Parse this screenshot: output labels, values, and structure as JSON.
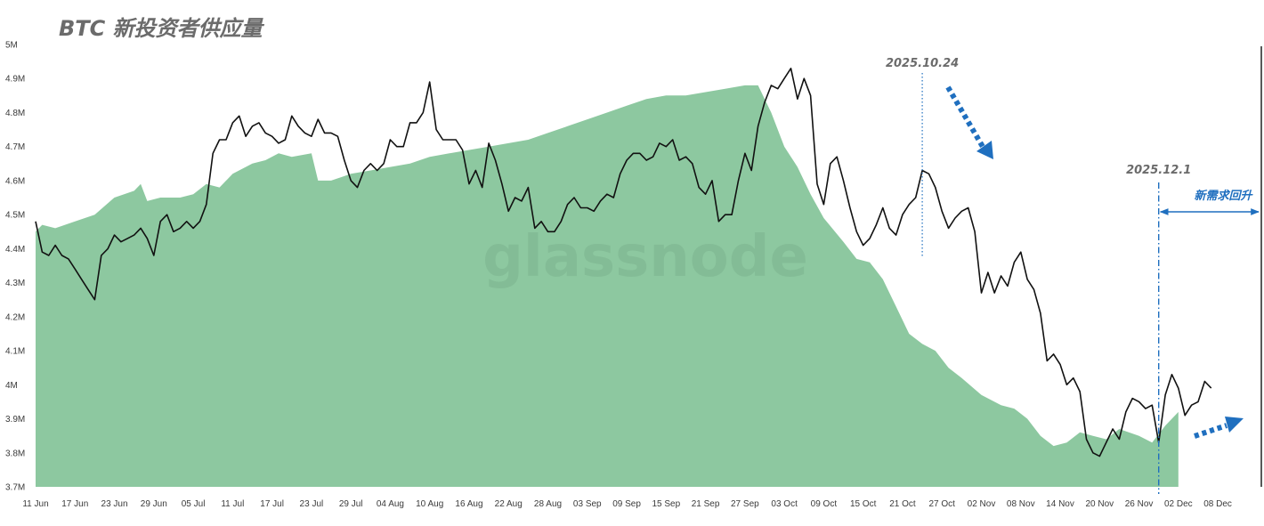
{
  "chart_data": {
    "type": "area",
    "title": "BTC 新投资者供应量",
    "watermark": "glassnode",
    "x_tick_labels": [
      "11 Jun",
      "17 Jun",
      "23 Jun",
      "29 Jun",
      "05 Jul",
      "11 Jul",
      "17 Jul",
      "23 Jul",
      "29 Jul",
      "04 Aug",
      "10 Aug",
      "16 Aug",
      "22 Aug",
      "28 Aug",
      "03 Sep",
      "09 Sep",
      "15 Sep",
      "21 Sep",
      "27 Sep",
      "03 Oct",
      "09 Oct",
      "15 Oct",
      "21 Oct",
      "27 Oct",
      "02 Nov",
      "08 Nov",
      "14 Nov",
      "20 Nov",
      "26 Nov",
      "02 Dec",
      "08 Dec"
    ],
    "y_tick_labels": [
      "3.7M",
      "3.8M",
      "3.9M",
      "4M",
      "4.1M",
      "4.2M",
      "4.3M",
      "4.4M",
      "4.5M",
      "4.6M",
      "4.7M",
      "4.8M",
      "4.9M",
      "5M"
    ],
    "y_tick_values": [
      3.7,
      3.8,
      3.9,
      4.0,
      4.1,
      4.2,
      4.3,
      4.4,
      4.5,
      4.6,
      4.7,
      4.8,
      4.9,
      5.0
    ],
    "ylim": [
      3.7,
      5.0
    ],
    "x_start": "2025-06-11",
    "x_days": 185,
    "grid": false,
    "series": [
      {
        "name": "",
        "kind": "area",
        "color": "#8dc8a0",
        "points": [
          [
            0,
            4.45
          ],
          [
            1,
            4.47
          ],
          [
            3,
            4.46
          ],
          [
            6,
            4.48
          ],
          [
            9,
            4.5
          ],
          [
            12,
            4.55
          ],
          [
            15,
            4.57
          ],
          [
            16,
            4.59
          ],
          [
            17,
            4.54
          ],
          [
            19,
            4.55
          ],
          [
            22,
            4.55
          ],
          [
            24,
            4.56
          ],
          [
            26,
            4.59
          ],
          [
            28,
            4.58
          ],
          [
            30,
            4.62
          ],
          [
            33,
            4.65
          ],
          [
            35,
            4.66
          ],
          [
            37,
            4.68
          ],
          [
            39,
            4.67
          ],
          [
            42,
            4.68
          ],
          [
            43,
            4.6
          ],
          [
            45,
            4.6
          ],
          [
            48,
            4.62
          ],
          [
            51,
            4.63
          ],
          [
            54,
            4.64
          ],
          [
            57,
            4.65
          ],
          [
            60,
            4.67
          ],
          [
            63,
            4.68
          ],
          [
            66,
            4.69
          ],
          [
            69,
            4.7
          ],
          [
            72,
            4.71
          ],
          [
            75,
            4.72
          ],
          [
            78,
            4.74
          ],
          [
            81,
            4.76
          ],
          [
            84,
            4.78
          ],
          [
            87,
            4.8
          ],
          [
            90,
            4.82
          ],
          [
            93,
            4.84
          ],
          [
            96,
            4.85
          ],
          [
            99,
            4.85
          ],
          [
            102,
            4.86
          ],
          [
            105,
            4.87
          ],
          [
            108,
            4.88
          ],
          [
            110,
            4.88
          ],
          [
            112,
            4.8
          ],
          [
            114,
            4.7
          ],
          [
            116,
            4.64
          ],
          [
            118,
            4.56
          ],
          [
            120,
            4.49
          ],
          [
            123,
            4.42
          ],
          [
            125,
            4.37
          ],
          [
            127,
            4.36
          ],
          [
            129,
            4.31
          ],
          [
            131,
            4.23
          ],
          [
            133,
            4.15
          ],
          [
            135,
            4.12
          ],
          [
            137,
            4.1
          ],
          [
            139,
            4.05
          ],
          [
            141,
            4.02
          ],
          [
            144,
            3.97
          ],
          [
            147,
            3.94
          ],
          [
            149,
            3.93
          ],
          [
            151,
            3.9
          ],
          [
            153,
            3.85
          ],
          [
            155,
            3.82
          ],
          [
            157,
            3.83
          ],
          [
            159,
            3.86
          ],
          [
            161,
            3.85
          ],
          [
            163,
            3.84
          ],
          [
            165,
            3.87
          ],
          [
            168,
            3.85
          ],
          [
            170,
            3.83
          ],
          [
            172,
            3.88
          ],
          [
            174,
            3.92
          ]
        ]
      },
      {
        "name": "",
        "kind": "line",
        "color": "#111111",
        "points": [
          [
            0,
            4.48
          ],
          [
            1,
            4.39
          ],
          [
            2,
            4.38
          ],
          [
            3,
            4.41
          ],
          [
            4,
            4.38
          ],
          [
            5,
            4.37
          ],
          [
            6,
            4.34
          ],
          [
            7,
            4.31
          ],
          [
            8,
            4.28
          ],
          [
            9,
            4.25
          ],
          [
            10,
            4.38
          ],
          [
            11,
            4.4
          ],
          [
            12,
            4.44
          ],
          [
            13,
            4.42
          ],
          [
            14,
            4.43
          ],
          [
            15,
            4.44
          ],
          [
            16,
            4.46
          ],
          [
            17,
            4.43
          ],
          [
            18,
            4.38
          ],
          [
            19,
            4.48
          ],
          [
            20,
            4.5
          ],
          [
            21,
            4.45
          ],
          [
            22,
            4.46
          ],
          [
            23,
            4.48
          ],
          [
            24,
            4.46
          ],
          [
            25,
            4.48
          ],
          [
            26,
            4.53
          ],
          [
            27,
            4.68
          ],
          [
            28,
            4.72
          ],
          [
            29,
            4.72
          ],
          [
            30,
            4.77
          ],
          [
            31,
            4.79
          ],
          [
            32,
            4.73
          ],
          [
            33,
            4.76
          ],
          [
            34,
            4.77
          ],
          [
            35,
            4.74
          ],
          [
            36,
            4.73
          ],
          [
            37,
            4.71
          ],
          [
            38,
            4.72
          ],
          [
            39,
            4.79
          ],
          [
            40,
            4.76
          ],
          [
            41,
            4.74
          ],
          [
            42,
            4.73
          ],
          [
            43,
            4.78
          ],
          [
            44,
            4.74
          ],
          [
            45,
            4.74
          ],
          [
            46,
            4.73
          ],
          [
            47,
            4.66
          ],
          [
            48,
            4.6
          ],
          [
            49,
            4.58
          ],
          [
            50,
            4.63
          ],
          [
            51,
            4.65
          ],
          [
            52,
            4.63
          ],
          [
            53,
            4.65
          ],
          [
            54,
            4.72
          ],
          [
            55,
            4.7
          ],
          [
            56,
            4.7
          ],
          [
            57,
            4.77
          ],
          [
            58,
            4.77
          ],
          [
            59,
            4.8
          ],
          [
            60,
            4.89
          ],
          [
            61,
            4.75
          ],
          [
            62,
            4.72
          ],
          [
            63,
            4.72
          ],
          [
            64,
            4.72
          ],
          [
            65,
            4.69
          ],
          [
            66,
            4.59
          ],
          [
            67,
            4.63
          ],
          [
            68,
            4.58
          ],
          [
            69,
            4.71
          ],
          [
            70,
            4.66
          ],
          [
            71,
            4.59
          ],
          [
            72,
            4.51
          ],
          [
            73,
            4.55
          ],
          [
            74,
            4.54
          ],
          [
            75,
            4.58
          ],
          [
            76,
            4.46
          ],
          [
            77,
            4.48
          ],
          [
            78,
            4.45
          ],
          [
            79,
            4.45
          ],
          [
            80,
            4.48
          ],
          [
            81,
            4.53
          ],
          [
            82,
            4.55
          ],
          [
            83,
            4.52
          ],
          [
            84,
            4.52
          ],
          [
            85,
            4.51
          ],
          [
            86,
            4.54
          ],
          [
            87,
            4.56
          ],
          [
            88,
            4.55
          ],
          [
            89,
            4.62
          ],
          [
            90,
            4.66
          ],
          [
            91,
            4.68
          ],
          [
            92,
            4.68
          ],
          [
            93,
            4.66
          ],
          [
            94,
            4.67
          ],
          [
            95,
            4.71
          ],
          [
            96,
            4.7
          ],
          [
            97,
            4.72
          ],
          [
            98,
            4.66
          ],
          [
            99,
            4.67
          ],
          [
            100,
            4.65
          ],
          [
            101,
            4.58
          ],
          [
            102,
            4.56
          ],
          [
            103,
            4.6
          ],
          [
            104,
            4.48
          ],
          [
            105,
            4.5
          ],
          [
            106,
            4.5
          ],
          [
            107,
            4.6
          ],
          [
            108,
            4.68
          ],
          [
            109,
            4.63
          ],
          [
            110,
            4.76
          ],
          [
            111,
            4.83
          ],
          [
            112,
            4.88
          ],
          [
            113,
            4.87
          ],
          [
            114,
            4.9
          ],
          [
            115,
            4.93
          ],
          [
            116,
            4.84
          ],
          [
            117,
            4.9
          ],
          [
            118,
            4.85
          ],
          [
            119,
            4.59
          ],
          [
            120,
            4.53
          ],
          [
            121,
            4.65
          ],
          [
            122,
            4.67
          ],
          [
            123,
            4.6
          ],
          [
            124,
            4.52
          ],
          [
            125,
            4.45
          ],
          [
            126,
            4.41
          ],
          [
            127,
            4.43
          ],
          [
            128,
            4.47
          ],
          [
            129,
            4.52
          ],
          [
            130,
            4.46
          ],
          [
            131,
            4.44
          ],
          [
            132,
            4.5
          ],
          [
            133,
            4.53
          ],
          [
            134,
            4.55
          ],
          [
            135,
            4.63
          ],
          [
            136,
            4.62
          ],
          [
            137,
            4.58
          ],
          [
            138,
            4.51
          ],
          [
            139,
            4.46
          ],
          [
            140,
            4.49
          ],
          [
            141,
            4.51
          ],
          [
            142,
            4.52
          ],
          [
            143,
            4.45
          ],
          [
            144,
            4.27
          ],
          [
            145,
            4.33
          ],
          [
            146,
            4.27
          ],
          [
            147,
            4.32
          ],
          [
            148,
            4.29
          ],
          [
            149,
            4.36
          ],
          [
            150,
            4.39
          ],
          [
            151,
            4.31
          ],
          [
            152,
            4.28
          ],
          [
            153,
            4.21
          ],
          [
            154,
            4.07
          ],
          [
            155,
            4.09
          ],
          [
            156,
            4.06
          ],
          [
            157,
            4.0
          ],
          [
            158,
            4.02
          ],
          [
            159,
            3.98
          ],
          [
            160,
            3.84
          ],
          [
            161,
            3.8
          ],
          [
            162,
            3.79
          ],
          [
            163,
            3.83
          ],
          [
            164,
            3.87
          ],
          [
            165,
            3.84
          ],
          [
            166,
            3.92
          ],
          [
            167,
            3.96
          ],
          [
            168,
            3.95
          ],
          [
            169,
            3.93
          ],
          [
            170,
            3.94
          ],
          [
            171,
            3.83
          ],
          [
            172,
            3.97
          ],
          [
            173,
            4.03
          ],
          [
            174,
            3.99
          ],
          [
            175,
            3.91
          ],
          [
            176,
            3.94
          ],
          [
            177,
            3.95
          ],
          [
            178,
            4.01
          ],
          [
            179,
            3.99
          ]
        ]
      }
    ],
    "annotations": [
      {
        "label": "2025.10.24",
        "kind": "dotted-vline",
        "color": "#1f6fbf"
      },
      {
        "label": "2025.12.1",
        "kind": "dashdot-vline",
        "color": "#1f6fbf"
      },
      {
        "label": "新需求回升",
        "kind": "range-arrow",
        "color": "#1f6fbf"
      }
    ]
  }
}
